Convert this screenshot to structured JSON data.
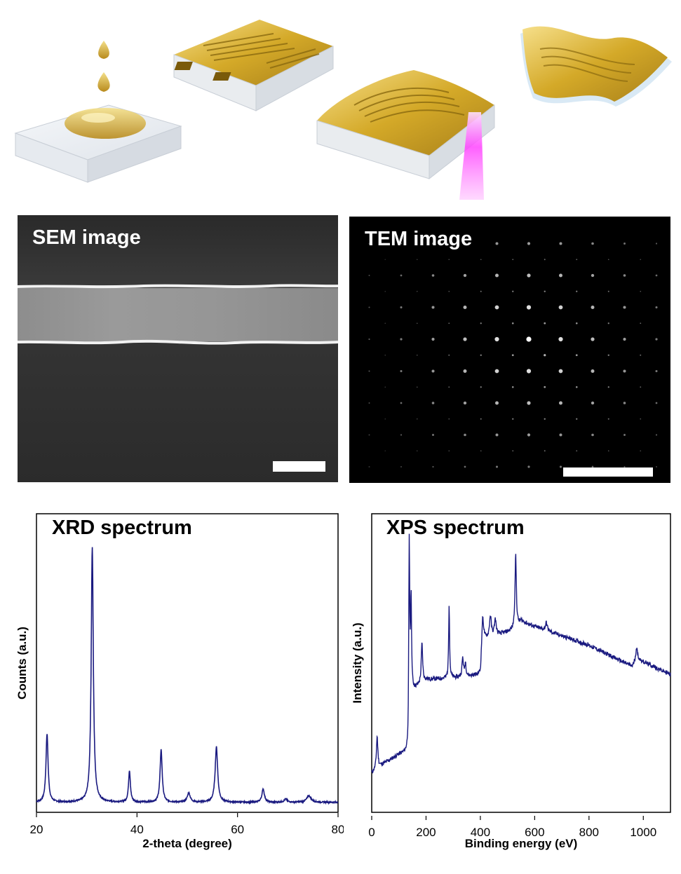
{
  "schematic": {
    "steps": [
      "droplet-deposition",
      "electrode-patterned-substrate",
      "laser-processing",
      "flexible-device"
    ]
  },
  "sem": {
    "title": "SEM image"
  },
  "tem": {
    "title": "TEM image"
  },
  "colors": {
    "series": "#1a1a80",
    "gold": "#d4a928",
    "laser": "#ff44ff"
  },
  "chart_data": [
    {
      "type": "line",
      "title": "XRD spectrum",
      "xlabel": "2-theta (degree)",
      "ylabel": "Counts (a.u.)",
      "xlim": [
        20,
        80
      ],
      "ylim": [
        0,
        100
      ],
      "x_ticks": [
        20,
        40,
        60,
        80
      ],
      "x_tick_labels": [
        "20",
        "40",
        "60",
        "80"
      ],
      "y_ticks_shown": false,
      "baseline": 3,
      "peaks": [
        {
          "x": 22.1,
          "height": 26,
          "width": 0.25
        },
        {
          "x": 31.1,
          "height": 97,
          "width": 0.25
        },
        {
          "x": 38.5,
          "height": 12,
          "width": 0.22
        },
        {
          "x": 44.8,
          "height": 20,
          "width": 0.25
        },
        {
          "x": 50.3,
          "height": 3.5,
          "width": 0.35
        },
        {
          "x": 55.8,
          "height": 21,
          "width": 0.3
        },
        {
          "x": 65.1,
          "height": 5,
          "width": 0.3
        },
        {
          "x": 69.6,
          "height": 1.2,
          "width": 0.35
        },
        {
          "x": 74.2,
          "height": 2.5,
          "width": 0.5
        }
      ]
    },
    {
      "type": "line",
      "title": "XPS spectrum",
      "xlabel": "Binding energy (eV)",
      "ylabel": "Intensity (a.u.)",
      "xlim": [
        0,
        1100
      ],
      "ylim": [
        0,
        100
      ],
      "x_ticks": [
        0,
        200,
        400,
        600,
        800,
        1000
      ],
      "x_tick_labels": [
        "0",
        "200",
        "400",
        "600",
        "800",
        "1000"
      ],
      "y_ticks_shown": false,
      "background": [
        [
          0,
          15
        ],
        [
          20,
          17
        ],
        [
          100,
          22
        ],
        [
          135,
          23
        ],
        [
          140,
          45
        ],
        [
          200,
          50
        ],
        [
          330,
          51
        ],
        [
          400,
          52
        ],
        [
          410,
          65
        ],
        [
          500,
          68
        ],
        [
          530,
          69
        ],
        [
          550,
          72
        ],
        [
          600,
          70
        ],
        [
          800,
          63
        ],
        [
          960,
          55
        ],
        [
          975,
          58
        ],
        [
          1100,
          52
        ]
      ],
      "peaks": [
        {
          "x": 20,
          "height": 12,
          "width": 3
        },
        {
          "x": 138,
          "height": 65,
          "width": 2
        },
        {
          "x": 145,
          "height": 35,
          "width": 2
        },
        {
          "x": 185,
          "height": 15,
          "width": 3
        },
        {
          "x": 285,
          "height": 28,
          "width": 2
        },
        {
          "x": 335,
          "height": 7,
          "width": 3
        },
        {
          "x": 345,
          "height": 5,
          "width": 3
        },
        {
          "x": 408,
          "height": 10,
          "width": 4
        },
        {
          "x": 437,
          "height": 8,
          "width": 4
        },
        {
          "x": 455,
          "height": 6,
          "width": 4
        },
        {
          "x": 530,
          "height": 28,
          "width": 3
        },
        {
          "x": 643,
          "height": 3,
          "width": 4
        },
        {
          "x": 975,
          "height": 4,
          "width": 4
        }
      ]
    }
  ]
}
